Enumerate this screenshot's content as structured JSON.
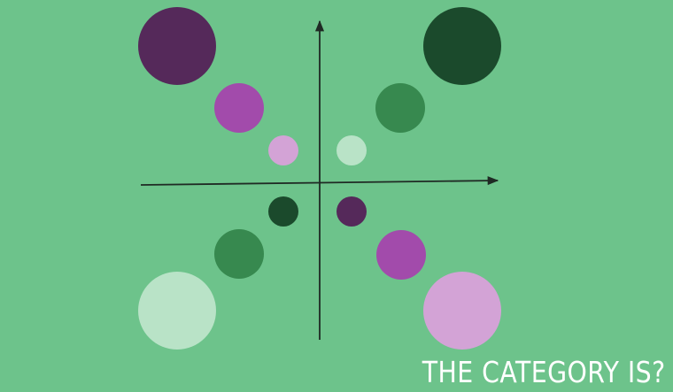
{
  "caption": "THE CATEGORY IS?",
  "colors": {
    "background": "#6dc38b",
    "axis": "#1f2a24",
    "dark_purple": "#55295a",
    "mid_purple": "#a24bab",
    "light_purple": "#d3a3d6",
    "dark_green": "#1b4a2c",
    "mid_green": "#37894f",
    "light_green": "#b9e3c7"
  },
  "quadrants": {
    "top_left": [
      "dark_purple-large",
      "mid_purple-medium",
      "light_purple-small"
    ],
    "top_right": [
      "dark_green-large",
      "mid_green-medium",
      "light_green-small"
    ],
    "bottom_left": [
      "dark_green-small",
      "mid_green-medium",
      "light_green-large"
    ],
    "bottom_right": [
      "dark_purple-small",
      "mid_purple-medium",
      "light_purple-large"
    ]
  }
}
